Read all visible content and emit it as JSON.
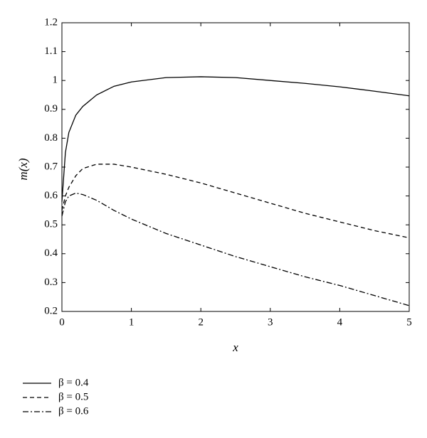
{
  "chart_data": {
    "type": "line",
    "xlabel": "x",
    "ylabel": "m(x)",
    "x": [
      0,
      0.05,
      0.1,
      0.2,
      0.3,
      0.5,
      0.75,
      1,
      1.5,
      2,
      2.5,
      3,
      3.5,
      4,
      4.5,
      5
    ],
    "series": [
      {
        "name": "β = 0.4",
        "color": "#000000",
        "dash": "solid",
        "values": [
          0.58,
          0.75,
          0.82,
          0.88,
          0.91,
          0.95,
          0.98,
          0.995,
          1.01,
          1.013,
          1.01,
          1.0,
          0.99,
          0.978,
          0.963,
          0.947
        ]
      },
      {
        "name": "β = 0.5",
        "color": "#000000",
        "dash": "dashed",
        "values": [
          0.55,
          0.6,
          0.63,
          0.67,
          0.695,
          0.71,
          0.71,
          0.7,
          0.675,
          0.645,
          0.61,
          0.575,
          0.54,
          0.51,
          0.48,
          0.455
        ]
      },
      {
        "name": "β = 0.6",
        "color": "#000000",
        "dash": "dashdot",
        "values": [
          0.53,
          0.58,
          0.6,
          0.61,
          0.605,
          0.585,
          0.55,
          0.52,
          0.47,
          0.43,
          0.39,
          0.355,
          0.32,
          0.29,
          0.255,
          0.22
        ]
      }
    ],
    "xlim": [
      0,
      5
    ],
    "xticks": [
      0,
      1,
      2,
      3,
      4,
      5
    ],
    "ylim": [
      0.2,
      1.2
    ],
    "yticks": [
      0.2,
      0.3,
      0.4,
      0.5,
      0.6,
      0.7,
      0.8,
      0.9,
      1,
      1.1,
      1.2
    ]
  }
}
